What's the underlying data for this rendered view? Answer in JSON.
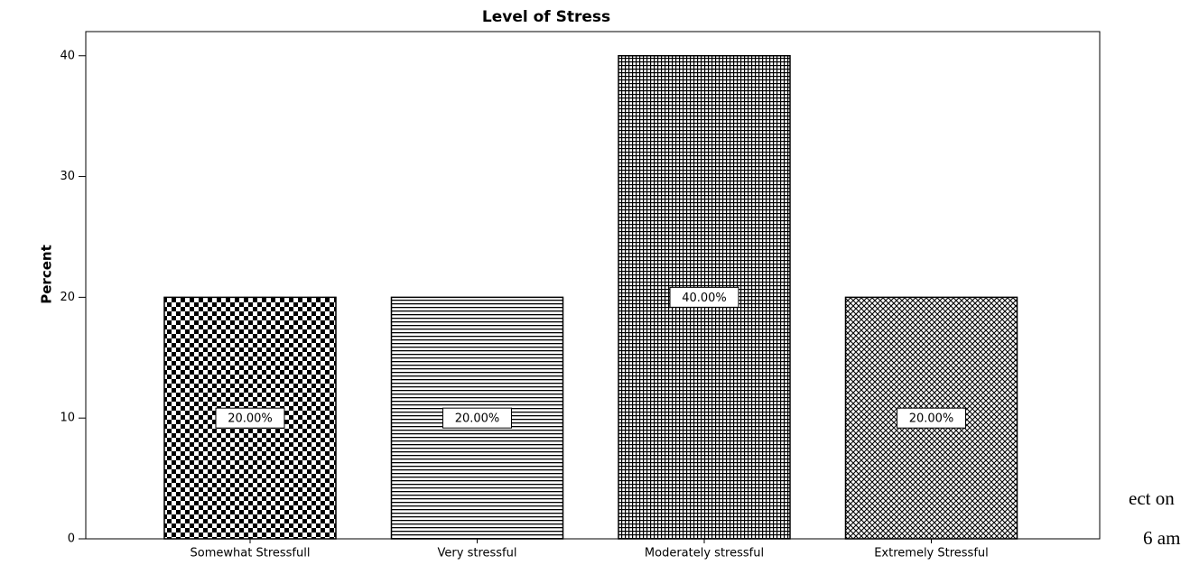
{
  "chart_data": {
    "type": "bar",
    "title": "Level of Stress",
    "y_label": "Percent",
    "categories": [
      "Somewhat Stressfull",
      "Very stressful",
      "Moderately stressful",
      "Extremely Stressful"
    ],
    "values": [
      20,
      20,
      40,
      20
    ],
    "value_labels": [
      "20.00%",
      "20.00%",
      "40.00%",
      "20.00%"
    ],
    "color": "#000000",
    "ylim": [
      0,
      42
    ],
    "yticks": [
      0,
      10,
      20,
      30,
      40
    ],
    "grid": false,
    "annotations": [
      "ect on",
      "6 am"
    ]
  }
}
